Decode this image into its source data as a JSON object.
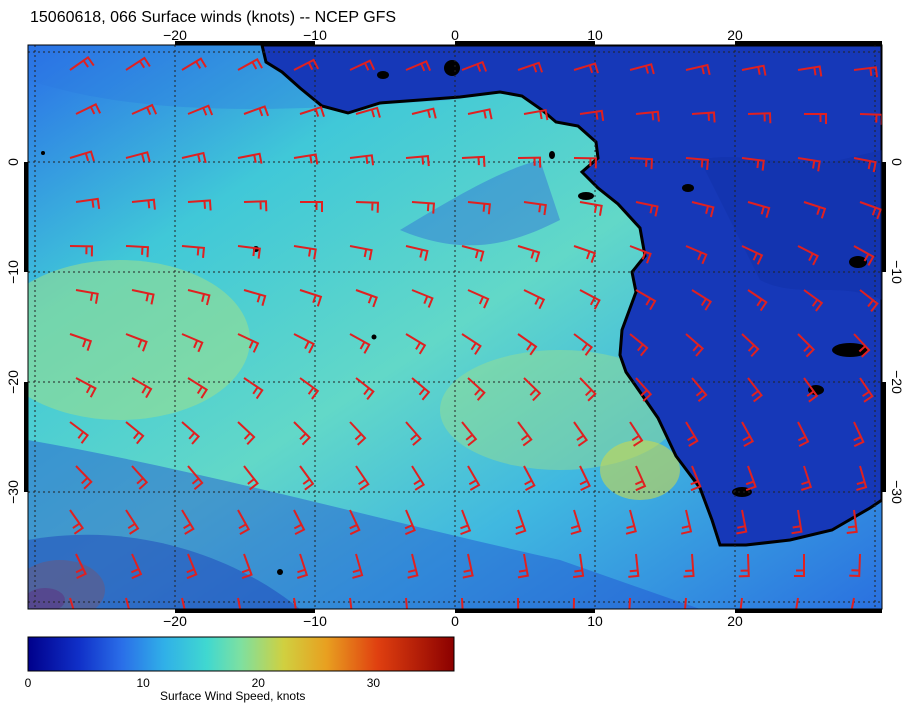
{
  "title": "15060618, 066 Surface winds (knots) -- NCEP GFS",
  "map": {
    "field": "Surface wind speed and wind barbs",
    "lon_range": [
      -31,
      31
    ],
    "lat_range": [
      -40,
      10
    ],
    "lon_ticks": [
      -20,
      -10,
      0,
      10,
      20
    ],
    "lat_ticks": [
      0,
      -10,
      -20,
      -30
    ],
    "lon_tick_labels": [
      "−20",
      "−10",
      "0",
      "10",
      "20"
    ],
    "lat_tick_labels": [
      "0",
      "−10",
      "−20",
      "−30"
    ],
    "barb_color": "#e02020",
    "coast_color": "#000000",
    "grid": true
  },
  "colorbar": {
    "label": "Surface Wind Speed, knots",
    "range": [
      0,
      37
    ],
    "ticks": [
      0,
      10,
      20,
      30
    ],
    "tick_labels": [
      "0",
      "10",
      "20",
      "30"
    ],
    "colormap": [
      "#00008b",
      "#1030c8",
      "#2a6ee8",
      "#30b0e8",
      "#40d8d0",
      "#7ee0a0",
      "#d0d040",
      "#e8a020",
      "#e04010",
      "#8b0000"
    ]
  }
}
